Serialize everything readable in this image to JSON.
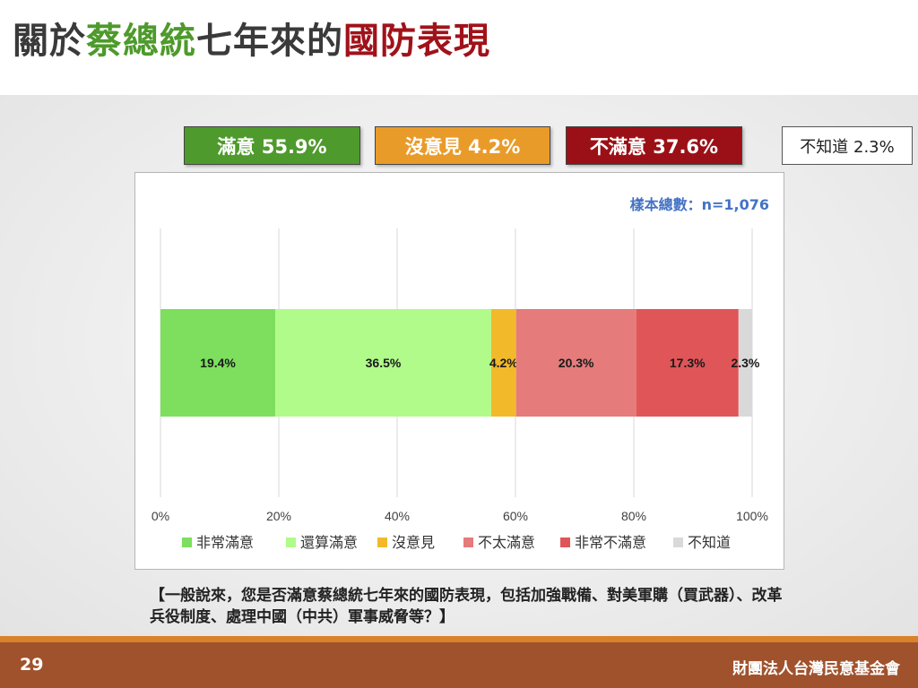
{
  "title": {
    "part1": "關於",
    "part2": "蔡總統",
    "part3": "七年來的",
    "part4": "國防表現"
  },
  "colors": {
    "title_dark": "#3a3a3a",
    "title_green": "#4e9a2c",
    "title_red": "#a0121a"
  },
  "summary": {
    "satisfied": "滿意 55.9%",
    "neutral": "沒意見 4.2%",
    "unsatisfied": "不滿意 37.6%",
    "unknown": "不知道 2.3%"
  },
  "sample_size": "樣本總數：n=1,076",
  "chart_data": {
    "type": "bar",
    "orientation": "horizontal",
    "stacked": true,
    "categories": [
      ""
    ],
    "series": [
      {
        "name": "非常滿意",
        "values": [
          19.4
        ],
        "label": "19.4%",
        "color": "#7ddf5d"
      },
      {
        "name": "還算滿意",
        "values": [
          36.5
        ],
        "label": "36.5%",
        "color": "#b0fb8a"
      },
      {
        "name": "沒意見",
        "values": [
          4.2
        ],
        "label": "4.2%",
        "color": "#f2b92b"
      },
      {
        "name": "不太滿意",
        "values": [
          20.3
        ],
        "label": "20.3%",
        "color": "#e57b7b"
      },
      {
        "name": "非常不滿意",
        "values": [
          17.3
        ],
        "label": "17.3%",
        "color": "#e05558"
      },
      {
        "name": "不知道",
        "values": [
          2.3
        ],
        "label": "2.3%",
        "color": "#d9d9d9"
      }
    ],
    "xlim": [
      0,
      100
    ],
    "xticks": [
      "0%",
      "20%",
      "40%",
      "60%",
      "80%",
      "100%"
    ],
    "grid": true,
    "legend_position": "bottom"
  },
  "question": "【一般說來，您是否滿意蔡總統七年來的國防表現，包括加強戰備、對美軍購（買武器）、改革兵役制度、處理中國（中共）軍事威脅等？】",
  "footer": {
    "page_number": "29",
    "org_name": "財團法人台灣民意基金會"
  }
}
